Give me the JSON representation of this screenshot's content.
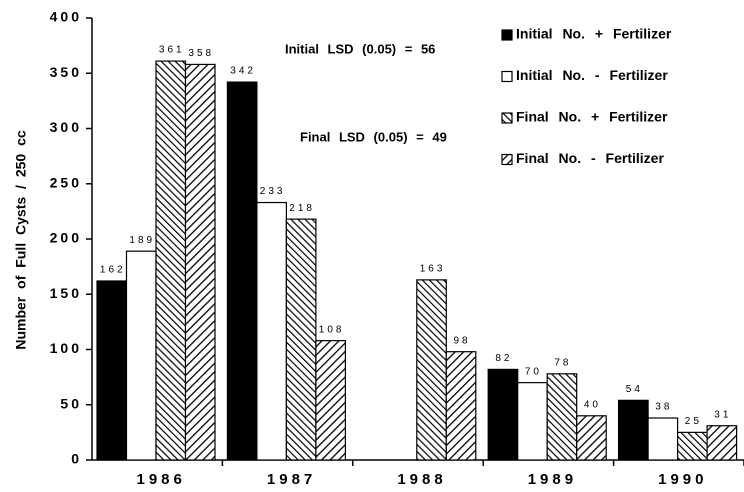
{
  "chart_data": {
    "type": "bar",
    "ylabel": "Number of Full Cysts / 250 cc",
    "annotations": [
      "Initial LSD (0.05) = 56",
      "Final LSD (0.05) = 49"
    ],
    "categories": [
      "1986",
      "1987",
      "1988",
      "1989",
      "1990"
    ],
    "series": [
      {
        "name": "Initial No. + Fertilizer",
        "color": "#000000",
        "pattern": "solid",
        "values": [
          162,
          342,
          null,
          82,
          54
        ]
      },
      {
        "name": "Initial No. - Fertilizer",
        "color": "#000000",
        "pattern": "hollow",
        "values": [
          189,
          233,
          null,
          70,
          38
        ]
      },
      {
        "name": "Final No. + Fertilizer",
        "color": "#000000",
        "pattern": "diagonal-left",
        "values": [
          361,
          218,
          163,
          78,
          25
        ]
      },
      {
        "name": "Final No. - Fertilizer",
        "color": "#000000",
        "pattern": "diagonal-right",
        "values": [
          358,
          108,
          98,
          40,
          31
        ]
      }
    ],
    "ylim": [
      0,
      400
    ],
    "yticks": [
      0,
      50,
      100,
      150,
      200,
      250,
      300,
      350,
      400
    ]
  }
}
